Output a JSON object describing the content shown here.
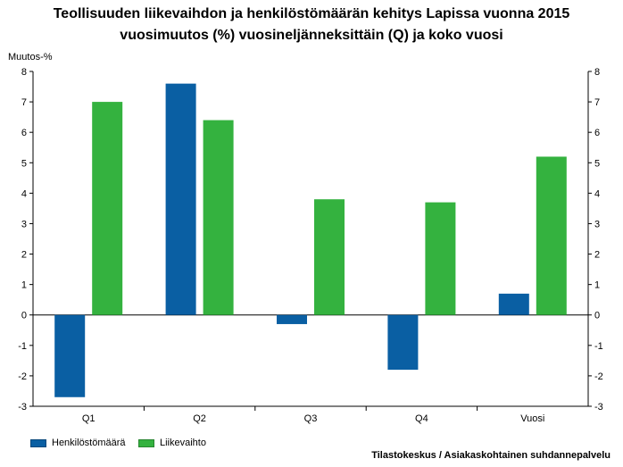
{
  "chart_data": {
    "type": "bar",
    "title": "Teollisuuden liikevaihdon ja henkilöstömäärän kehitys Lapissa vuonna 2015",
    "subtitle": "vuosimuutos (%) vuosineljänneksittäin (Q) ja koko vuosi",
    "ylabel": "Muutos-%",
    "xlabel": "",
    "categories": [
      "Q1",
      "Q2",
      "Q3",
      "Q4",
      "Vuosi"
    ],
    "series": [
      {
        "name": "Henkilöstömäärä",
        "color": "#0a5fa3",
        "values": [
          -2.7,
          7.6,
          -0.3,
          -1.8,
          0.7
        ]
      },
      {
        "name": "Liikevaihto",
        "color": "#34b23f",
        "values": [
          7.0,
          6.4,
          3.8,
          3.7,
          5.2
        ]
      }
    ],
    "ylim": [
      -3,
      8
    ],
    "yticks": [
      -3,
      -2,
      -1,
      0,
      1,
      2,
      3,
      4,
      5,
      6,
      7,
      8
    ],
    "grid": false,
    "legend_position": "bottom-left",
    "source": "Tilastokeskus / Asiakaskohtainen suhdannepalvelu"
  }
}
